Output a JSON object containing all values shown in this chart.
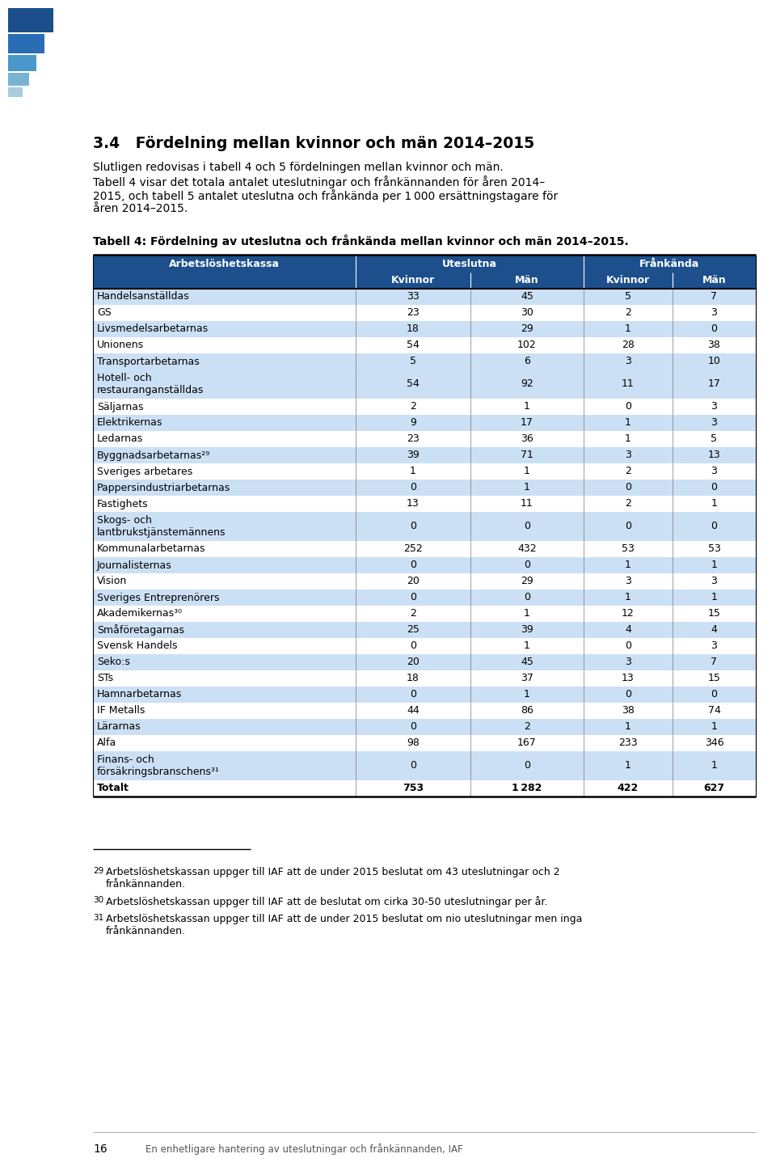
{
  "heading": "3.4   Fördelning mellan kvinnor och män 2014–2015",
  "intro_line1": "Slutligen redovisas i tabell 4 och 5 fördelningen mellan kvinnor och män.",
  "intro_line2": "Tabell 4 visar det totala antalet uteslutningar och frånkännanden för åren 2014–",
  "intro_line3": "2015, och tabell 5 antalet uteslutna och frånkända per 1 000 ersättningstagare för",
  "intro_line4": "åren 2014–2015.",
  "table_caption": "Tabell 4: Fördelning av uteslutna och frånkända mellan kvinnor och män 2014–2015.",
  "rows": [
    [
      "Handelsanställdas",
      "33",
      "45",
      "5",
      "7",
      false
    ],
    [
      "GS",
      "23",
      "30",
      "2",
      "3",
      false
    ],
    [
      "Livsmedelsarbetarnas",
      "18",
      "29",
      "1",
      "0",
      false
    ],
    [
      "Unionens",
      "54",
      "102",
      "28",
      "38",
      false
    ],
    [
      "Transportarbetarnas",
      "5",
      "6",
      "3",
      "10",
      false
    ],
    [
      "Hotell- och\nrestauranganställdas",
      "54",
      "92",
      "11",
      "17",
      false
    ],
    [
      "Säljarnas",
      "2",
      "1",
      "0",
      "3",
      false
    ],
    [
      "Elektrikernas",
      "9",
      "17",
      "1",
      "3",
      false
    ],
    [
      "Ledarnas",
      "23",
      "36",
      "1",
      "5",
      false
    ],
    [
      "Byggnadsarbetarnas²⁹",
      "39",
      "71",
      "3",
      "13",
      false
    ],
    [
      "Sveriges arbetares",
      "1",
      "1",
      "2",
      "3",
      false
    ],
    [
      "Pappersindustriarbetarnas",
      "0",
      "1",
      "0",
      "0",
      false
    ],
    [
      "Fastighets",
      "13",
      "11",
      "2",
      "1",
      false
    ],
    [
      "Skogs- och\nlantbrukstjänstemännens",
      "0",
      "0",
      "0",
      "0",
      false
    ],
    [
      "Kommunalarbetarnas",
      "252",
      "432",
      "53",
      "53",
      false
    ],
    [
      "Journalisternas",
      "0",
      "0",
      "1",
      "1",
      false
    ],
    [
      "Vision",
      "20",
      "29",
      "3",
      "3",
      false
    ],
    [
      "Sveriges Entreprenörers",
      "0",
      "0",
      "1",
      "1",
      false
    ],
    [
      "Akademikernas³⁰",
      "2",
      "1",
      "12",
      "15",
      false
    ],
    [
      "Småföretagarnas",
      "25",
      "39",
      "4",
      "4",
      false
    ],
    [
      "Svensk Handels",
      "0",
      "1",
      "0",
      "3",
      false
    ],
    [
      "Seko:s",
      "20",
      "45",
      "3",
      "7",
      false
    ],
    [
      "STs",
      "18",
      "37",
      "13",
      "15",
      false
    ],
    [
      "Hamnarbetarnas",
      "0",
      "1",
      "0",
      "0",
      false
    ],
    [
      "IF Metalls",
      "44",
      "86",
      "38",
      "74",
      false
    ],
    [
      "Lärarnas",
      "0",
      "2",
      "1",
      "1",
      false
    ],
    [
      "Alfa",
      "98",
      "167",
      "233",
      "346",
      false
    ],
    [
      "Finans- och\nförsäkringsbranschens³¹",
      "0",
      "0",
      "1",
      "1",
      false
    ],
    [
      "Totalt",
      "753",
      "1 282",
      "422",
      "627",
      true
    ]
  ],
  "row_colors": [
    "#cce0f5",
    "#ffffff",
    "#cce0f5",
    "#ffffff",
    "#cce0f5",
    "#cce0f5",
    "#ffffff",
    "#cce0f5",
    "#ffffff",
    "#cce0f5",
    "#ffffff",
    "#cce0f5",
    "#ffffff",
    "#cce0f5",
    "#ffffff",
    "#cce0f5",
    "#ffffff",
    "#cce0f5",
    "#ffffff",
    "#cce0f5",
    "#ffffff",
    "#cce0f5",
    "#ffffff",
    "#cce0f5",
    "#ffffff",
    "#cce0f5",
    "#ffffff",
    "#cce0f5",
    "#ffffff"
  ],
  "footnote29": "Arbetslöshetskassan uppger till IAF att de under 2015 beslutat om 43 uteslutningar och 2 frånkännanden.",
  "footnote30": "Arbetslöshetskassan uppger till IAF att de beslutat om cirka 30-50 uteslutningar per år.",
  "footnote31": "Arbetslöshetskassan uppger till IAF att de under 2015 beslutat om nio uteslutningar men inga frånkännanden.",
  "page_number": "16",
  "page_footer": "En enhetligare hantering av uteslutningar och frånkännanden, IAF",
  "header_bg": "#1c4f8c",
  "bg_color": "#ffffff"
}
